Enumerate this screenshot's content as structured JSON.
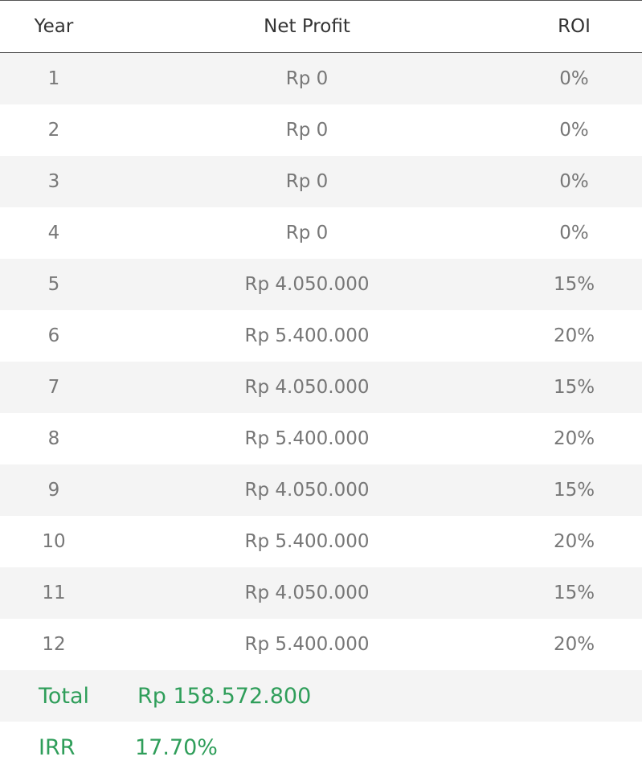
{
  "header": {
    "year": "Year",
    "net_profit": "Net Profit",
    "roi": "ROI"
  },
  "rows": [
    {
      "year": "1",
      "net_profit": "Rp 0",
      "roi": "0%"
    },
    {
      "year": "2",
      "net_profit": "Rp 0",
      "roi": "0%"
    },
    {
      "year": "3",
      "net_profit": "Rp 0",
      "roi": "0%"
    },
    {
      "year": "4",
      "net_profit": "Rp 0",
      "roi": "0%"
    },
    {
      "year": "5",
      "net_profit": "Rp 4.050.000",
      "roi": "15%"
    },
    {
      "year": "6",
      "net_profit": "Rp 5.400.000",
      "roi": "20%"
    },
    {
      "year": "7",
      "net_profit": "Rp 4.050.000",
      "roi": "15%"
    },
    {
      "year": "8",
      "net_profit": "Rp 5.400.000",
      "roi": "20%"
    },
    {
      "year": "9",
      "net_profit": "Rp 4.050.000",
      "roi": "15%"
    },
    {
      "year": "10",
      "net_profit": "Rp 5.400.000",
      "roi": "20%"
    },
    {
      "year": "11",
      "net_profit": "Rp 4.050.000",
      "roi": "15%"
    },
    {
      "year": "12",
      "net_profit": "Rp 5.400.000",
      "roi": "20%"
    }
  ],
  "summary": {
    "total_label": "Total",
    "total_value": "Rp 158.572.800",
    "irr_label": "IRR",
    "irr_value": "17.70%"
  },
  "colors": {
    "accent_green": "#2f9e5a",
    "row_shade": "#f4f4f4",
    "text_gray": "#777777",
    "header_text": "#333333"
  }
}
